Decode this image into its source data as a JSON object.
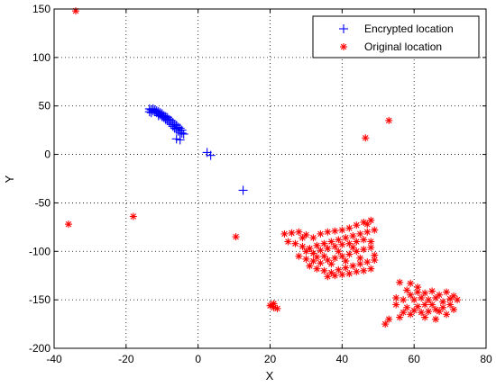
{
  "chart_data": {
    "type": "scatter",
    "title": "",
    "xlabel": "X",
    "ylabel": "Y",
    "xlim": [
      -40,
      80
    ],
    "ylim": [
      -200,
      150
    ],
    "xticks": [
      -40,
      -20,
      0,
      20,
      40,
      60,
      80
    ],
    "yticks": [
      -200,
      -150,
      -100,
      -50,
      0,
      50,
      100,
      150
    ],
    "grid": true,
    "legend_position": "top-right",
    "series": [
      {
        "name": "Encrypted location",
        "color": "#0000ff",
        "marker": "plus",
        "points": [
          [
            -13.5,
            47
          ],
          [
            -13,
            46
          ],
          [
            -12.5,
            45
          ],
          [
            -12,
            44
          ],
          [
            -11.5,
            43
          ],
          [
            -11,
            42
          ],
          [
            -10.5,
            41
          ],
          [
            -10,
            39
          ],
          [
            -9.5,
            38
          ],
          [
            -9,
            37
          ],
          [
            -8.5,
            35
          ],
          [
            -8,
            33
          ],
          [
            -7.5,
            31
          ],
          [
            -7,
            29
          ],
          [
            -6.5,
            27
          ],
          [
            -6,
            26
          ],
          [
            -5.5,
            24
          ],
          [
            -5,
            22
          ],
          [
            -12.5,
            47
          ],
          [
            -12,
            46
          ],
          [
            -11.5,
            45
          ],
          [
            -11,
            44
          ],
          [
            -10.5,
            43
          ],
          [
            -10,
            42
          ],
          [
            -9.5,
            40
          ],
          [
            -9,
            39
          ],
          [
            -8.5,
            38
          ],
          [
            -8,
            36
          ],
          [
            -7.5,
            35
          ],
          [
            -7,
            33
          ],
          [
            -6.5,
            31
          ],
          [
            -6,
            30
          ],
          [
            -5.5,
            28
          ],
          [
            -5,
            27
          ],
          [
            -4.5,
            25
          ],
          [
            -4.5,
            22
          ],
          [
            -4,
            21
          ],
          [
            -13.5,
            44
          ],
          [
            -13,
            43
          ],
          [
            -11,
            40
          ],
          [
            -9,
            36
          ],
          [
            -7,
            31
          ],
          [
            -6,
            16
          ],
          [
            -5,
            15
          ],
          [
            2.5,
            2
          ],
          [
            3.5,
            -1
          ],
          [
            12.5,
            -37
          ]
        ]
      },
      {
        "name": "Original location",
        "color": "#ff0000",
        "marker": "star",
        "points": [
          [
            -34,
            148
          ],
          [
            -36,
            -72
          ],
          [
            -18,
            -64
          ],
          [
            10.5,
            -85
          ],
          [
            46.5,
            17
          ],
          [
            53,
            35
          ],
          [
            20,
            -156
          ],
          [
            21,
            -158
          ],
          [
            22,
            -159
          ],
          [
            21,
            -154
          ],
          [
            20.5,
            -155
          ],
          [
            24,
            -82
          ],
          [
            26,
            -81
          ],
          [
            28,
            -80
          ],
          [
            30,
            -83
          ],
          [
            32,
            -86
          ],
          [
            34,
            -82
          ],
          [
            36,
            -80
          ],
          [
            38,
            -79
          ],
          [
            40,
            -78
          ],
          [
            42,
            -76
          ],
          [
            44,
            -73
          ],
          [
            46,
            -70
          ],
          [
            48,
            -68
          ],
          [
            47,
            -72
          ],
          [
            25,
            -90
          ],
          [
            27,
            -92
          ],
          [
            29,
            -95
          ],
          [
            31,
            -97
          ],
          [
            33,
            -94
          ],
          [
            35,
            -92
          ],
          [
            37,
            -90
          ],
          [
            39,
            -88
          ],
          [
            41,
            -86
          ],
          [
            43,
            -84
          ],
          [
            45,
            -82
          ],
          [
            47,
            -80
          ],
          [
            49,
            -78
          ],
          [
            48,
            -90
          ],
          [
            28,
            -105
          ],
          [
            30,
            -108
          ],
          [
            32,
            -110
          ],
          [
            34,
            -112
          ],
          [
            36,
            -109
          ],
          [
            38,
            -107
          ],
          [
            40,
            -105
          ],
          [
            42,
            -103
          ],
          [
            44,
            -100
          ],
          [
            46,
            -98
          ],
          [
            48,
            -96
          ],
          [
            49,
            -104
          ],
          [
            31,
            -115
          ],
          [
            33,
            -118
          ],
          [
            35,
            -120
          ],
          [
            37,
            -122
          ],
          [
            39,
            -119
          ],
          [
            41,
            -117
          ],
          [
            43,
            -115
          ],
          [
            45,
            -113
          ],
          [
            47,
            -111
          ],
          [
            49,
            -109
          ],
          [
            48,
            -118
          ],
          [
            36,
            -126
          ],
          [
            38,
            -125
          ],
          [
            40,
            -124
          ],
          [
            42,
            -123
          ],
          [
            44,
            -121
          ],
          [
            46,
            -120
          ],
          [
            30,
            -100
          ],
          [
            32,
            -102
          ],
          [
            34,
            -99
          ],
          [
            36,
            -97
          ],
          [
            38,
            -95
          ],
          [
            40,
            -93
          ],
          [
            42,
            -92
          ],
          [
            44,
            -90
          ],
          [
            46,
            -88
          ],
          [
            35,
            -105
          ],
          [
            45,
            -107
          ],
          [
            41,
            -110
          ],
          [
            37,
            -113
          ],
          [
            33,
            -106
          ],
          [
            29,
            -86
          ],
          [
            39,
            -100
          ],
          [
            43,
            -96
          ],
          [
            52,
            -175
          ],
          [
            53,
            -170
          ],
          [
            56,
            -168
          ],
          [
            59,
            -165
          ],
          [
            55,
            -155
          ],
          [
            57,
            -150
          ],
          [
            58,
            -140
          ],
          [
            56,
            -132
          ],
          [
            59,
            -133
          ],
          [
            61,
            -137
          ],
          [
            63,
            -143
          ],
          [
            65,
            -141
          ],
          [
            67,
            -145
          ],
          [
            69,
            -142
          ],
          [
            71,
            -146
          ],
          [
            72,
            -150
          ],
          [
            70,
            -155
          ],
          [
            68,
            -158
          ],
          [
            66,
            -160
          ],
          [
            64,
            -162
          ],
          [
            62,
            -163
          ],
          [
            60,
            -161
          ],
          [
            58,
            -158
          ],
          [
            57,
            -163
          ],
          [
            55,
            -148
          ],
          [
            60,
            -150
          ],
          [
            62,
            -148
          ],
          [
            64,
            -150
          ],
          [
            66,
            -148
          ],
          [
            68,
            -152
          ],
          [
            70,
            -149
          ],
          [
            63,
            -155
          ],
          [
            61,
            -157
          ],
          [
            65,
            -155
          ],
          [
            67,
            -162
          ],
          [
            63,
            -168
          ],
          [
            66,
            -170
          ],
          [
            69,
            -165
          ],
          [
            71,
            -160
          ],
          [
            59,
            -145
          ],
          [
            61,
            -142
          ]
        ]
      }
    ]
  }
}
